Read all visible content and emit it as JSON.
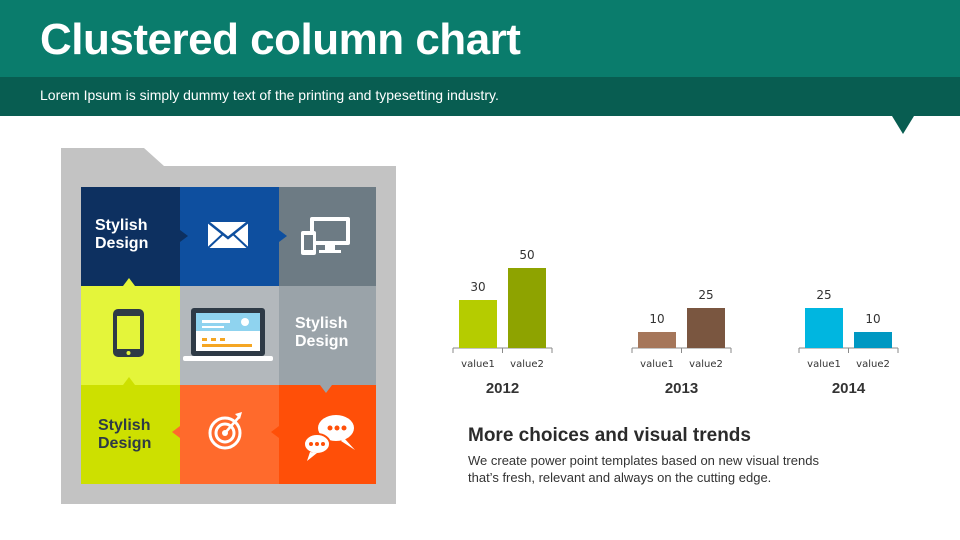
{
  "header": {
    "title": "Clustered column chart",
    "subtitle": "Lorem Ipsum is simply dummy text of the printing  and typesetting industry."
  },
  "tiles": [
    {
      "label": "Stylish Design",
      "icon": "text",
      "color": "#0d3060"
    },
    {
      "icon": "envelope-icon",
      "color": "#0e4f9f"
    },
    {
      "icon": "devices-icon",
      "color": "#6d7b84"
    },
    {
      "icon": "smartphone-icon",
      "color": "#e4f53a"
    },
    {
      "icon": "laptop-icon",
      "color": "#b3b8bc"
    },
    {
      "label": "Stylish Design",
      "icon": "text",
      "color": "#9aa3a9"
    },
    {
      "label": "Stylish Design",
      "icon": "text",
      "color": "#cde000"
    },
    {
      "icon": "target-icon",
      "color": "#ff6a2c"
    },
    {
      "icon": "chat-bubbles-icon",
      "color": "#ff4f08"
    }
  ],
  "chart_data": [
    {
      "type": "bar",
      "title": "2012",
      "categories": [
        "value1",
        "value2"
      ],
      "values": [
        30,
        50
      ],
      "colors": [
        "#b5cc00",
        "#8ea300"
      ]
    },
    {
      "type": "bar",
      "title": "2013",
      "categories": [
        "value1",
        "value2"
      ],
      "values": [
        10,
        25
      ],
      "colors": [
        "#a5765a",
        "#7a5640"
      ]
    },
    {
      "type": "bar",
      "title": "2014",
      "categories": [
        "value1",
        "value2"
      ],
      "values": [
        25,
        10
      ],
      "colors": [
        "#00b6e0",
        "#0098c2"
      ]
    }
  ],
  "more": {
    "title": "More choices and visual trends",
    "body": "We create power point templates based on new visual trends that’s fresh, relevant and always on the cutting  edge."
  }
}
